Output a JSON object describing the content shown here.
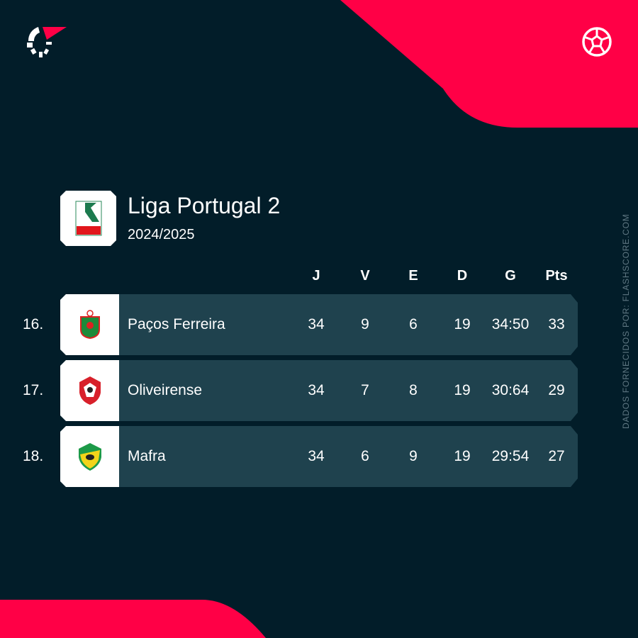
{
  "league": {
    "name": "Liga Portugal 2",
    "season": "2024/2025"
  },
  "columns": [
    "J",
    "V",
    "E",
    "D",
    "G",
    "Pts"
  ],
  "rows": [
    {
      "rank": "16.",
      "team": "Paços Ferreira",
      "J": "34",
      "V": "9",
      "E": "6",
      "D": "19",
      "G": "34:50",
      "Pts": "33"
    },
    {
      "rank": "17.",
      "team": "Oliveirense",
      "J": "34",
      "V": "7",
      "E": "8",
      "D": "19",
      "G": "30:64",
      "Pts": "29"
    },
    {
      "rank": "18.",
      "team": "Mafra",
      "J": "34",
      "V": "6",
      "E": "9",
      "D": "19",
      "G": "29:54",
      "Pts": "27"
    }
  ],
  "credit": "DADOS FORNECIDOS POR: FLASHSCORE.COM",
  "colors": {
    "background": "#021d29",
    "accent": "#ff0046",
    "row": "#1f424e"
  },
  "icons": {
    "brand": "flashscore-logo-icon",
    "sport": "soccer-ball-icon"
  }
}
